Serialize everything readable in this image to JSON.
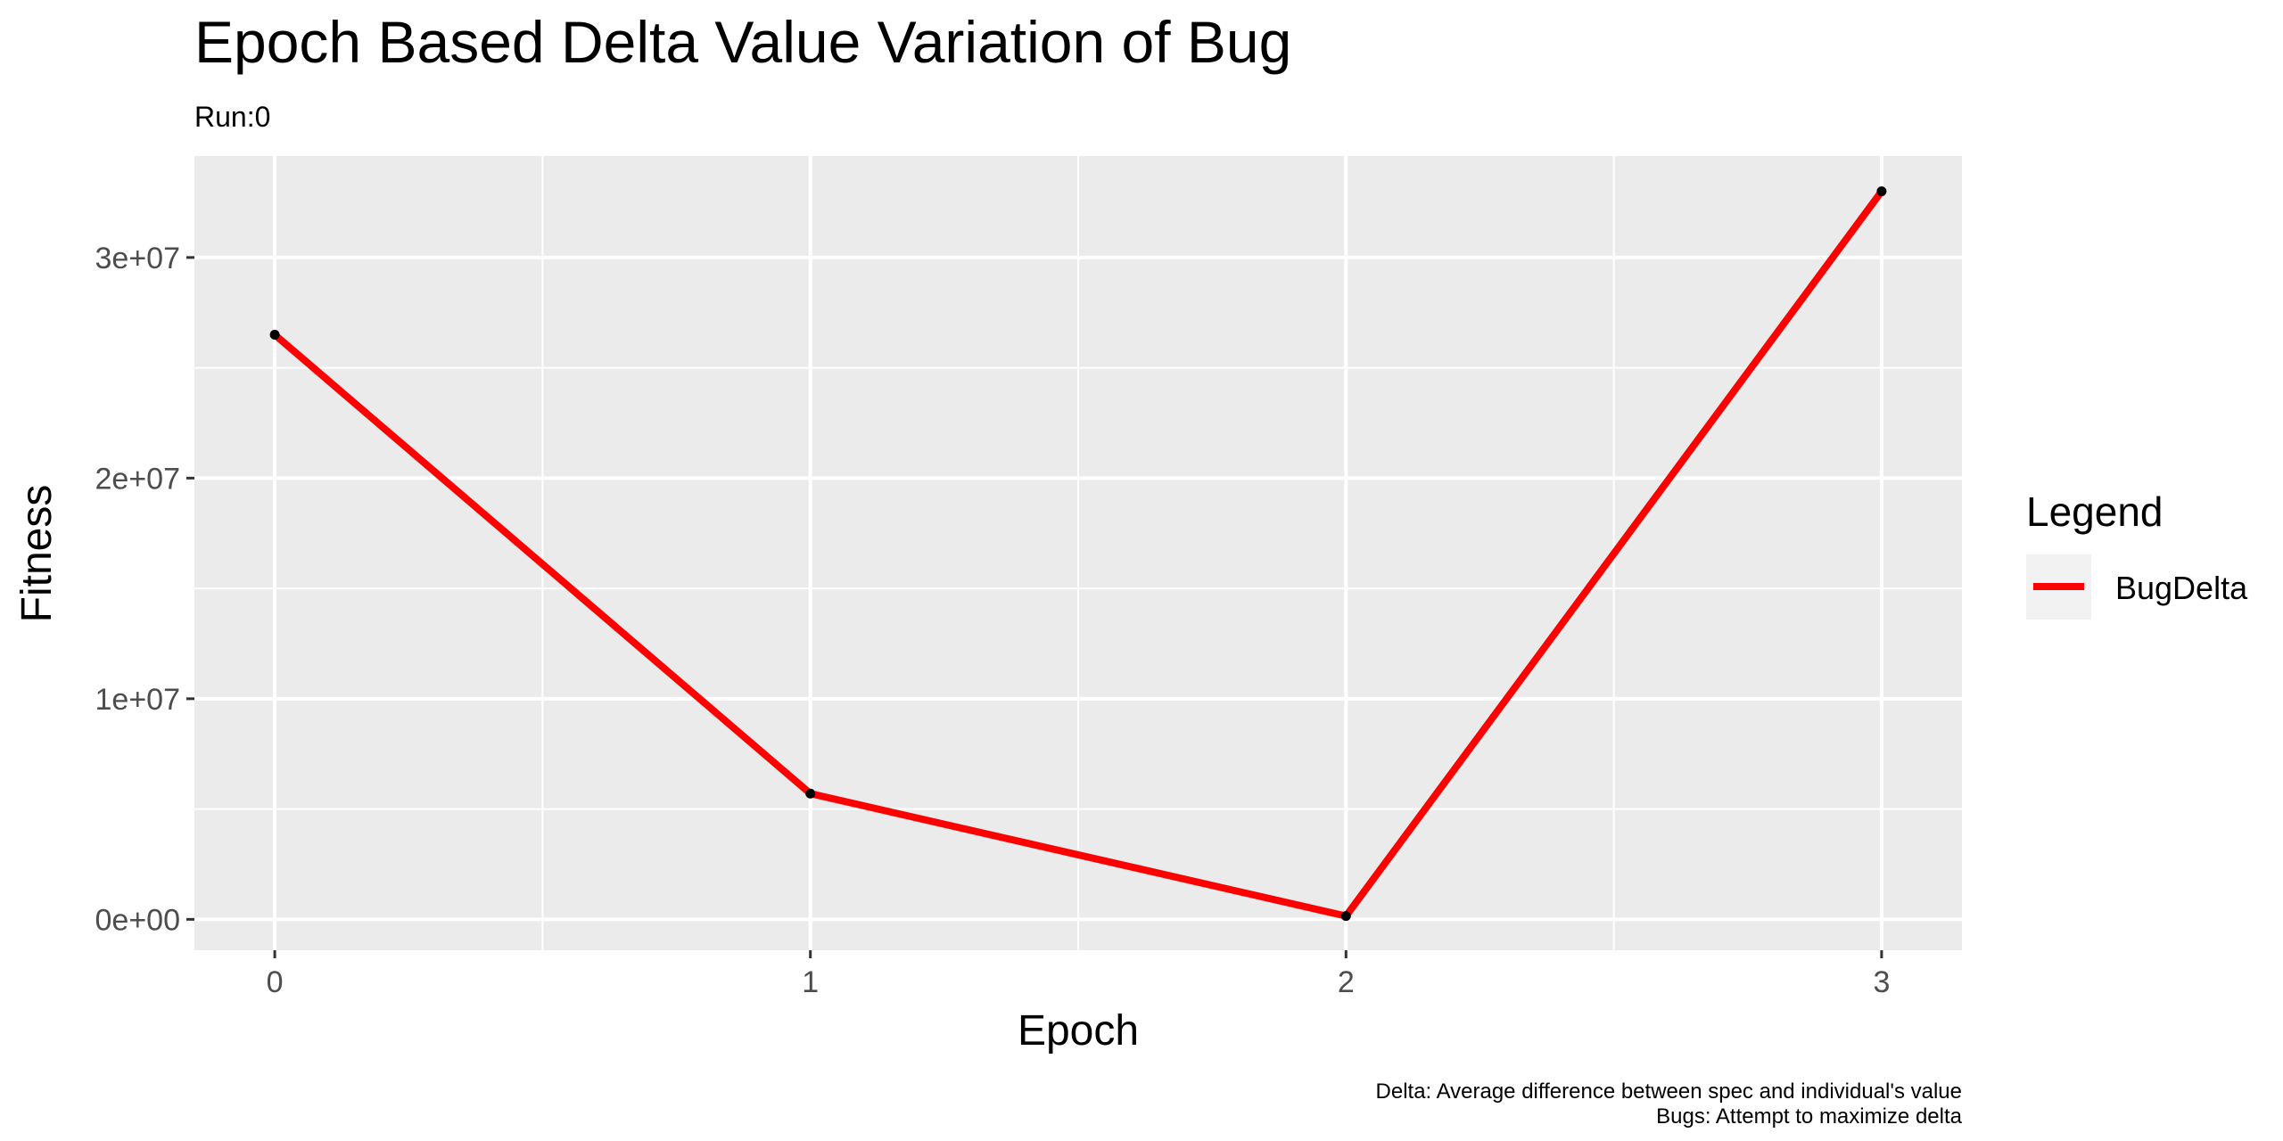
{
  "chart_data": {
    "type": "line",
    "title": "Epoch Based Delta Value Variation of Bug",
    "subtitle": "Run:0",
    "xlabel": "Epoch",
    "ylabel": "Fitness",
    "x": [
      0,
      1,
      2,
      3
    ],
    "x_tick_labels": [
      "0",
      "1",
      "2",
      "3"
    ],
    "xlim": [
      -0.15,
      3.15
    ],
    "y_ticks": [
      0,
      10000000,
      20000000,
      30000000
    ],
    "y_tick_labels": [
      "0e+00",
      "1e+07",
      "2e+07",
      "3e+07"
    ],
    "ylim": [
      -1400000,
      34600000
    ],
    "series": [
      {
        "name": "BugDelta",
        "color": "#ff0000",
        "values": [
          26500000,
          5700000,
          150000,
          33000000
        ]
      }
    ],
    "point_color": "#000000",
    "legend": {
      "title": "Legend",
      "placement": "right"
    },
    "caption": [
      "Delta: Average difference between spec and individual's value",
      "Bugs: Attempt to maximize delta"
    ],
    "panel_background": "#ebebeb",
    "grid": true,
    "grid_color": "#ffffff"
  }
}
